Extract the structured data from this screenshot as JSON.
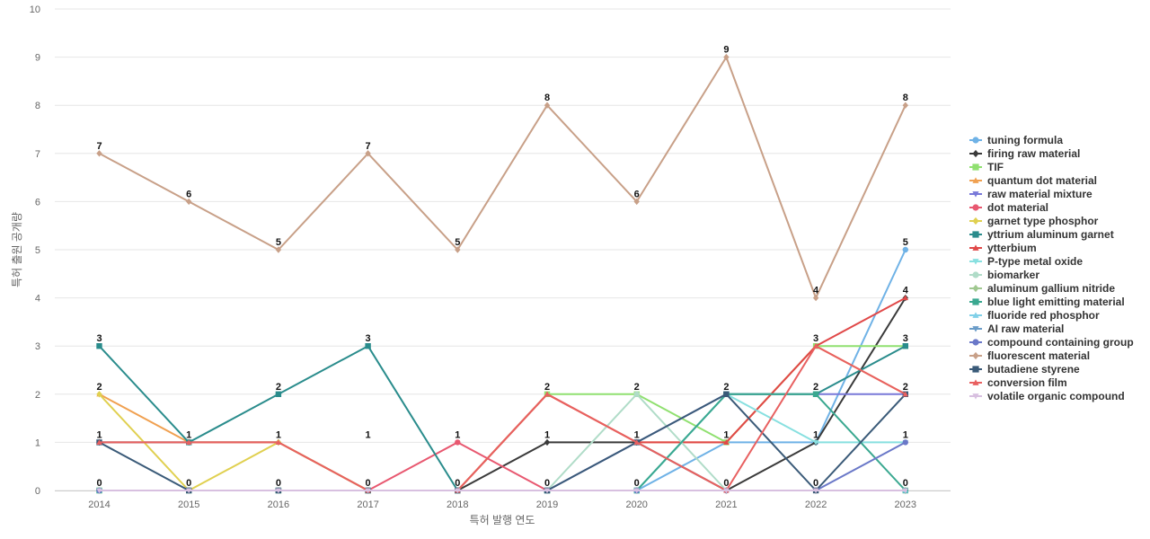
{
  "chart_data": {
    "type": "line",
    "xlabel": "특허 발행 연도",
    "ylabel": "특허 출원 공개량",
    "ylim": [
      0,
      10
    ],
    "yticks": [
      "0",
      "1",
      "2",
      "3",
      "4",
      "5",
      "6",
      "7",
      "8",
      "9",
      "10"
    ],
    "categories": [
      "2014",
      "2015",
      "2016",
      "2017",
      "2018",
      "2019",
      "2020",
      "2021",
      "2022",
      "2023"
    ],
    "grid": true,
    "legend_position": "right",
    "series": [
      {
        "name": "tuning formula",
        "color": "#6fb2e6",
        "marker": "circle",
        "values": [
          0,
          0,
          0,
          0,
          0,
          0,
          0,
          1,
          1,
          5
        ]
      },
      {
        "name": "firing raw material",
        "color": "#3a3a3a",
        "marker": "diamond",
        "values": [
          1,
          1,
          1,
          0,
          0,
          1,
          1,
          0,
          1,
          4
        ]
      },
      {
        "name": "TIF",
        "color": "#90e070",
        "marker": "square",
        "values": [
          0,
          0,
          0,
          0,
          0,
          2,
          2,
          1,
          3,
          3
        ]
      },
      {
        "name": "quantum dot material",
        "color": "#f0a050",
        "marker": "triangle",
        "values": [
          2,
          1,
          1,
          0,
          0,
          2,
          1,
          1,
          3,
          2
        ]
      },
      {
        "name": "raw material mixture",
        "color": "#7878d8",
        "marker": "triangle-down",
        "values": [
          0,
          0,
          0,
          0,
          0,
          0,
          1,
          2,
          2,
          2
        ]
      },
      {
        "name": "dot material",
        "color": "#e85870",
        "marker": "circle",
        "values": [
          0,
          0,
          0,
          0,
          1,
          0,
          0,
          0,
          0,
          0
        ]
      },
      {
        "name": "garnet type phosphor",
        "color": "#e0d050",
        "marker": "diamond",
        "values": [
          2,
          0,
          1,
          0,
          0,
          0,
          0,
          0,
          0,
          0
        ]
      },
      {
        "name": "yttrium aluminum garnet",
        "color": "#2a8c8c",
        "marker": "square",
        "values": [
          3,
          1,
          2,
          3,
          0,
          0,
          0,
          2,
          2,
          3
        ]
      },
      {
        "name": "ytterbium",
        "color": "#e04848",
        "marker": "triangle",
        "values": [
          0,
          0,
          0,
          0,
          0,
          2,
          1,
          1,
          3,
          4
        ]
      },
      {
        "name": "P-type metal oxide",
        "color": "#88e0e0",
        "marker": "triangle-down",
        "values": [
          0,
          0,
          0,
          0,
          0,
          0,
          0,
          2,
          1,
          1
        ]
      },
      {
        "name": "biomarker",
        "color": "#b0dcc8",
        "marker": "circle",
        "values": [
          0,
          0,
          0,
          0,
          0,
          0,
          2,
          0,
          0,
          0
        ]
      },
      {
        "name": "aluminum gallium nitride",
        "color": "#a0c890",
        "marker": "diamond",
        "values": [
          0,
          0,
          0,
          0,
          0,
          0,
          0,
          0,
          0,
          0
        ]
      },
      {
        "name": "blue light emitting material",
        "color": "#3aa890",
        "marker": "square",
        "values": [
          0,
          0,
          0,
          0,
          0,
          0,
          0,
          2,
          2,
          0
        ]
      },
      {
        "name": "fluoride red phosphor",
        "color": "#80d0e8",
        "marker": "triangle",
        "values": [
          0,
          0,
          0,
          0,
          0,
          0,
          0,
          0,
          0,
          0
        ]
      },
      {
        "name": "AI raw material",
        "color": "#6a9cc8",
        "marker": "triangle-down",
        "values": [
          0,
          0,
          0,
          0,
          0,
          0,
          0,
          0,
          0,
          0
        ]
      },
      {
        "name": "compound containing group",
        "color": "#6a78c8",
        "marker": "circle",
        "values": [
          0,
          0,
          0,
          0,
          0,
          0,
          0,
          0,
          0,
          1
        ]
      },
      {
        "name": "fluorescent material",
        "color": "#c8a088",
        "marker": "diamond",
        "values": [
          7,
          6,
          5,
          7,
          5,
          8,
          6,
          9,
          4,
          8
        ]
      },
      {
        "name": "butadiene styrene",
        "color": "#3a5a78",
        "marker": "square",
        "values": [
          1,
          0,
          0,
          0,
          0,
          0,
          1,
          2,
          0,
          2
        ]
      },
      {
        "name": "conversion film",
        "color": "#e86060",
        "marker": "triangle",
        "values": [
          1,
          1,
          1,
          0,
          0,
          2,
          1,
          0,
          3,
          2
        ]
      },
      {
        "name": "volatile organic compound",
        "color": "#d8c0e0",
        "marker": "triangle-down",
        "values": [
          0,
          0,
          0,
          0,
          0,
          0,
          0,
          0,
          0,
          0
        ]
      }
    ],
    "data_labels": [
      {
        "x": "2014",
        "values": [
          "7",
          "3",
          "2",
          "1",
          "0"
        ]
      },
      {
        "x": "2015",
        "values": [
          "6",
          "1",
          "0"
        ]
      },
      {
        "x": "2016",
        "values": [
          "5",
          "2",
          "1",
          "0"
        ]
      },
      {
        "x": "2017",
        "values": [
          "7",
          "3",
          "1",
          "0"
        ]
      },
      {
        "x": "2018",
        "values": [
          "5",
          "1",
          "0"
        ]
      },
      {
        "x": "2019",
        "values": [
          "8",
          "2",
          "1",
          "0"
        ]
      },
      {
        "x": "2020",
        "values": [
          "6",
          "2",
          "1",
          "0"
        ]
      },
      {
        "x": "2021",
        "values": [
          "9",
          "2",
          "1",
          "0"
        ]
      },
      {
        "x": "2022",
        "values": [
          "4",
          "3",
          "2",
          "1",
          "0"
        ]
      },
      {
        "x": "2023",
        "values": [
          "8",
          "5",
          "4",
          "3",
          "2",
          "1",
          "0"
        ]
      }
    ]
  }
}
